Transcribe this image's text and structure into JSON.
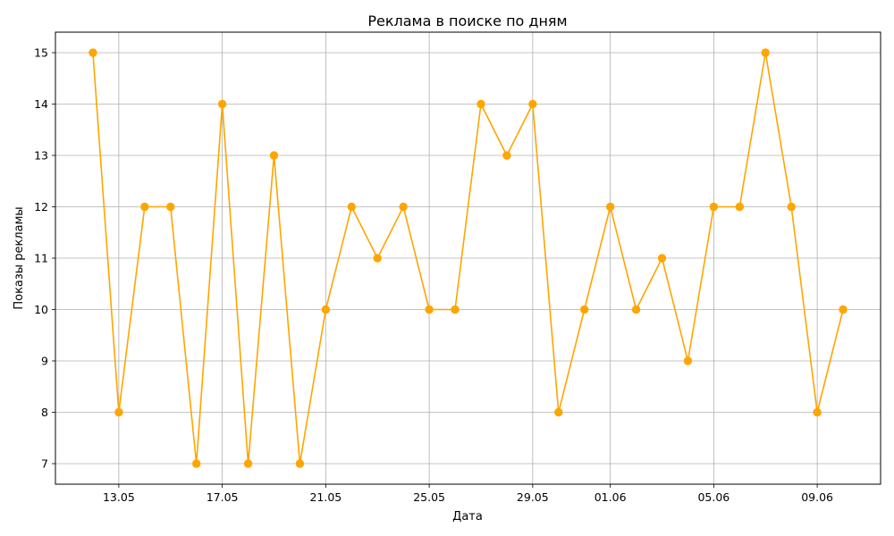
{
  "chart_data": {
    "type": "line",
    "title": "Реклама в поиске по дням",
    "xlabel": "Дата",
    "ylabel": "Показы рекламы",
    "x": [
      "12.05",
      "13.05",
      "14.05",
      "15.05",
      "16.05",
      "17.05",
      "18.05",
      "19.05",
      "20.05",
      "21.05",
      "22.05",
      "23.05",
      "24.05",
      "25.05",
      "26.05",
      "27.05",
      "28.05",
      "29.05",
      "30.05",
      "31.05",
      "01.06",
      "02.06",
      "03.06",
      "04.06",
      "05.06",
      "06.06",
      "07.06",
      "08.06",
      "09.06",
      "10.06"
    ],
    "series": [
      {
        "values": [
          15,
          8,
          12,
          12,
          7,
          14,
          7,
          13,
          7,
          10,
          12,
          11,
          12,
          10,
          10,
          14,
          13,
          14,
          8,
          10,
          12,
          10,
          11,
          9,
          12,
          12,
          15,
          12,
          8,
          10
        ],
        "color": "#ffa500"
      }
    ],
    "xticks": [
      "13.05",
      "17.05",
      "21.05",
      "25.05",
      "29.05",
      "01.06",
      "05.06",
      "09.06"
    ],
    "yticks": [
      7,
      8,
      9,
      10,
      11,
      12,
      13,
      14,
      15
    ],
    "ylim": [
      6.6,
      15.4
    ],
    "grid": true,
    "legend": false,
    "marker": "circle"
  }
}
